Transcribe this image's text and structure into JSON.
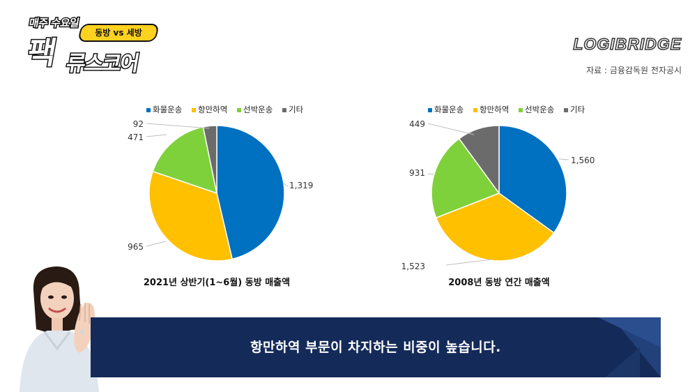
{
  "header": {
    "logo_top": "매주 수요일",
    "logo_pill": "동방 vs 세방",
    "logo_big": "팩",
    "logo_sub": "류스코어",
    "brand": "LOGIBRIDGE",
    "source": "자료 : 금융감독원 전자공시"
  },
  "colors": {
    "series": [
      "#0070c0",
      "#ffc000",
      "#7fd13b",
      "#6b6b6b"
    ],
    "banner": "#142a59"
  },
  "chart_data": [
    {
      "type": "pie",
      "legend_position": "top",
      "title": "2021년 상반기(1~6월) 동방 매출액",
      "categories": [
        "화물운송",
        "항만하역",
        "선박운송",
        "기타"
      ],
      "values": [
        1319,
        965,
        471,
        92
      ],
      "data_labels": [
        "1,319",
        "965",
        "471",
        "92"
      ]
    },
    {
      "type": "pie",
      "legend_position": "top",
      "title": "2008년 동방 연간 매출액",
      "categories": [
        "화물운송",
        "항만하역",
        "선박운송",
        "기타"
      ],
      "values": [
        1560,
        1523,
        931,
        449
      ],
      "data_labels": [
        "1,560",
        "1,523",
        "931",
        "449"
      ]
    }
  ],
  "banner": {
    "text": "항만하역 부문이 차지하는 비중이 높습니다."
  }
}
